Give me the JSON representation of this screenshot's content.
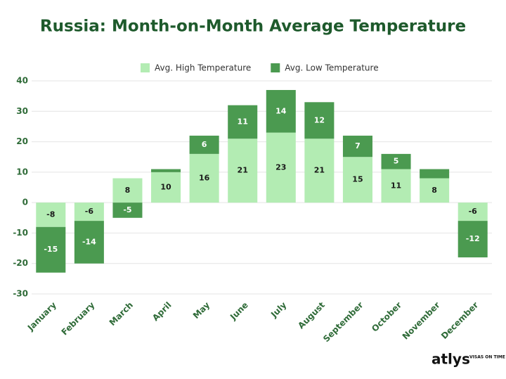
{
  "chart_data": {
    "type": "stacked-bar",
    "title": "Russia: Month-on-Month Average Temperature",
    "categories": [
      "January",
      "February",
      "March",
      "April",
      "May",
      "June",
      "July",
      "August",
      "September",
      "October",
      "November",
      "December"
    ],
    "series": [
      {
        "name": "Avg. High Temperature",
        "color": "#b3ecb3",
        "values": [
          -8,
          -6,
          8,
          10,
          16,
          21,
          23,
          21,
          15,
          11,
          8,
          -6
        ]
      },
      {
        "name": "Avg. Low Temperature",
        "color": "#4b9a50",
        "values": [
          -15,
          -14,
          -5,
          1,
          6,
          11,
          14,
          12,
          7,
          5,
          3,
          -12
        ],
        "value_labels": [
          "-15",
          "-14",
          "-5",
          null,
          "6",
          "11",
          "14",
          "12",
          "7",
          "5",
          null,
          "-12"
        ]
      }
    ],
    "ylim": [
      -30,
      40
    ],
    "yticks": [
      -30,
      -20,
      -10,
      0,
      10,
      20,
      30,
      40
    ],
    "grid": true,
    "logo": "atlys",
    "logo_tagline": "VISAS ON TIME"
  }
}
